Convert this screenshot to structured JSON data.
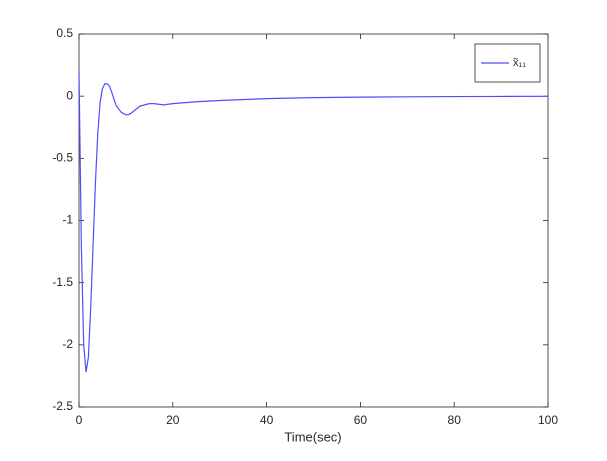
{
  "chart_data": {
    "type": "line",
    "xlabel": "Time(sec)",
    "x": [
      0,
      0.5,
      1,
      1.5,
      2,
      2.5,
      3,
      3.5,
      4,
      4.5,
      5,
      5.5,
      6,
      6.5,
      7,
      7.5,
      8,
      9,
      10,
      10.5,
      11,
      12,
      13,
      14,
      15,
      16,
      17,
      18,
      20,
      25,
      30,
      40,
      50,
      60,
      70,
      80,
      90,
      100
    ],
    "series": [
      {
        "name": "x̃₁₁",
        "color": "#4d4dff",
        "values": [
          0.2,
          -1.2,
          -2.0,
          -2.22,
          -2.1,
          -1.7,
          -1.2,
          -0.7,
          -0.3,
          -0.05,
          0.06,
          0.1,
          0.1,
          0.08,
          0.03,
          -0.03,
          -0.08,
          -0.13,
          -0.15,
          -0.15,
          -0.14,
          -0.11,
          -0.08,
          -0.07,
          -0.06,
          -0.06,
          -0.065,
          -0.07,
          -0.06,
          -0.045,
          -0.035,
          -0.02,
          -0.012,
          -0.008,
          -0.005,
          -0.003,
          -0.002,
          -0.001
        ]
      }
    ],
    "xlim": [
      0,
      100
    ],
    "xticks": [
      0,
      20,
      40,
      60,
      80,
      100
    ],
    "ylim": [
      -2.5,
      0.5
    ],
    "yticks": [
      -2.5,
      -2,
      -1.5,
      -1,
      -0.5,
      0,
      0.5
    ],
    "legend": "northeast",
    "grid": false
  }
}
